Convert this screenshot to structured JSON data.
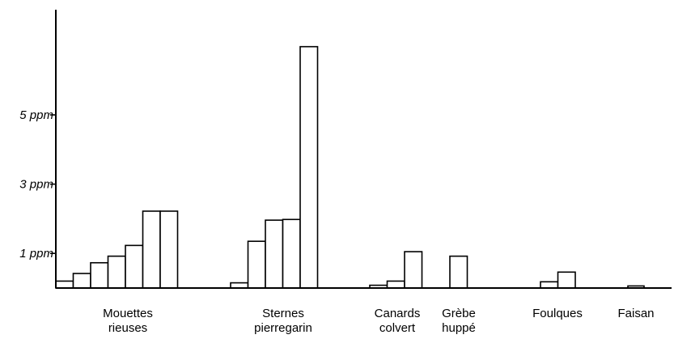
{
  "chart_data": {
    "type": "bar",
    "title": "",
    "xlabel": "",
    "ylabel": "",
    "ylim": [
      0,
      7
    ],
    "yticks": [
      {
        "value": 1,
        "label": "1 ppm"
      },
      {
        "value": 3,
        "label": "3 ppm"
      },
      {
        "value": 5,
        "label": "5 ppm"
      }
    ],
    "groups": [
      {
        "label_lines": [
          "Mouettes",
          "rieuses"
        ],
        "values": [
          0.2,
          0.42,
          0.73,
          0.92,
          1.23,
          2.22,
          2.22
        ]
      },
      {
        "label_lines": [
          "Sternes",
          "pierregarin"
        ],
        "values": [
          0.15,
          1.35,
          1.96,
          1.98,
          6.97
        ]
      },
      {
        "label_lines": [
          "Canards",
          "colvert"
        ],
        "values": [
          0.08,
          0.2,
          1.05
        ]
      },
      {
        "label_lines": [
          "Grèbe",
          "huppé"
        ],
        "values": [
          0.92
        ]
      },
      {
        "label_lines": [
          "Foulques"
        ],
        "values": [
          0.18,
          0.46
        ]
      },
      {
        "label_lines": [
          "Faisan"
        ],
        "values": [
          0.06
        ]
      }
    ]
  }
}
